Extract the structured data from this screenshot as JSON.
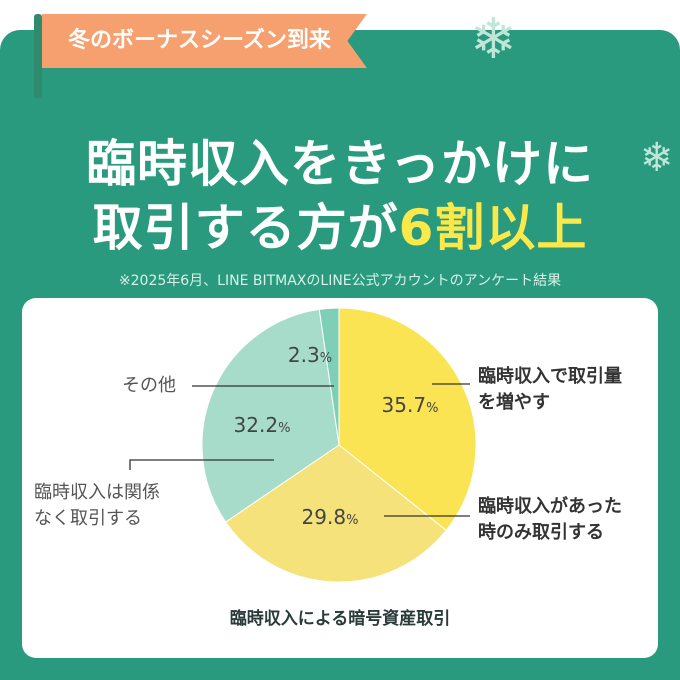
{
  "banner": "冬のボーナスシーズン到来",
  "headline": {
    "line1": "臨時収入をきっかけに",
    "line2_pre": "取引する方が",
    "line2_hl": "6割以上"
  },
  "note": "※2025年6月、LINE BITMAXのLINE公式アカウントのアンケート結果",
  "colors": {
    "background": "#2a9a7e",
    "accent": "#fbe94a",
    "banner": "#f6a06f"
  },
  "chart_data": {
    "type": "pie",
    "title": "臨時収入による暗号資産取引",
    "unit": "%",
    "slices": [
      {
        "label": "臨時収入で取引量を増やす",
        "value": 35.7,
        "color": "#fbe453"
      },
      {
        "label": "臨時収入があった時のみ取引する",
        "value": 29.8,
        "color": "#f6e27a"
      },
      {
        "label": "臨時収入は関係なく取引する",
        "value": 32.2,
        "color": "#a8dcca"
      },
      {
        "label": "その他",
        "value": 2.3,
        "color": "#7fcfb6"
      }
    ]
  },
  "labels": {
    "increase_l1": "臨時収入で取引量",
    "increase_l2": "を増やす",
    "only_l1": "臨時収入があった",
    "only_l2": "時のみ取引する",
    "unrelated_l1": "臨時収入は関係",
    "unrelated_l2": "なく取引する",
    "other": "その他"
  },
  "icons": [
    "snowflake-icon",
    "snowflake-icon",
    "snowflake-icon"
  ]
}
